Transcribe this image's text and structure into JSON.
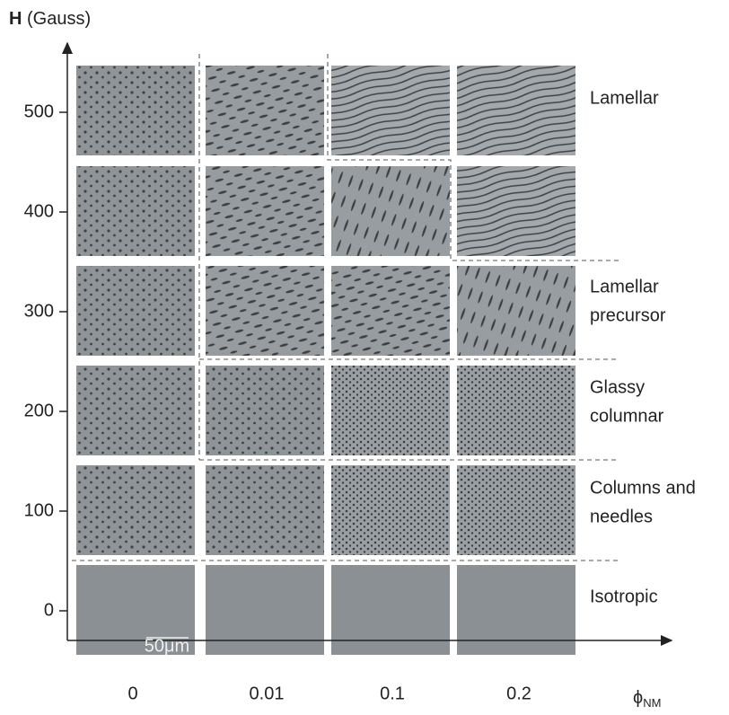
{
  "y_axis": {
    "symbol": "H",
    "unit": "(Gauss)",
    "ticks": [
      "500",
      "400",
      "300",
      "200",
      "100",
      "0"
    ]
  },
  "x_axis": {
    "symbol": "ϕ",
    "subscript": "NM",
    "ticks": [
      "0",
      "0.01",
      "0.1",
      "0.2"
    ]
  },
  "phases": [
    [
      "Lamellar"
    ],
    [
      "Lamellar",
      "precursor"
    ],
    [
      "Glassy",
      "columnar"
    ],
    [
      "Columns and",
      "needles"
    ],
    [
      "Isotropic"
    ]
  ],
  "scale_bar": "50μm"
}
